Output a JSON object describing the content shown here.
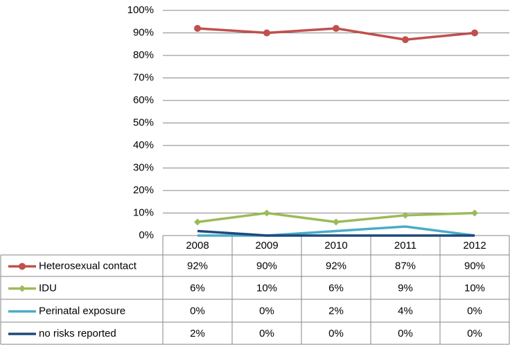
{
  "chart_data": {
    "type": "line",
    "categories": [
      "2008",
      "2009",
      "2010",
      "2011",
      "2012"
    ],
    "series": [
      {
        "name": "Heterosexual contact",
        "color": "#c0504d",
        "marker": "circle",
        "values": [
          92,
          90,
          92,
          87,
          90
        ],
        "value_labels": [
          "92%",
          "90%",
          "92%",
          "87%",
          "90%"
        ]
      },
      {
        "name": "IDU",
        "color": "#9bbb59",
        "marker": "diamond",
        "values": [
          6,
          10,
          6,
          9,
          10
        ],
        "value_labels": [
          "6%",
          "10%",
          "6%",
          "9%",
          "10%"
        ]
      },
      {
        "name": "Perinatal exposure",
        "color": "#4bacc6",
        "values": [
          0,
          0,
          2,
          4,
          0
        ],
        "value_labels": [
          "0%",
          "0%",
          "2%",
          "4%",
          "0%"
        ]
      },
      {
        "name": "no risks reported",
        "color": "#1f497d",
        "values": [
          2,
          0,
          0,
          0,
          0
        ],
        "value_labels": [
          "2%",
          "0%",
          "0%",
          "0%",
          "0%"
        ]
      }
    ],
    "ylim": [
      0,
      100
    ],
    "yticks": [
      {
        "value": 0,
        "label": "0%"
      },
      {
        "value": 10,
        "label": "10%"
      },
      {
        "value": 20,
        "label": "20%"
      },
      {
        "value": 30,
        "label": "30%"
      },
      {
        "value": 40,
        "label": "40%"
      },
      {
        "value": 50,
        "label": "50%"
      },
      {
        "value": 60,
        "label": "60%"
      },
      {
        "value": 70,
        "label": "70%"
      },
      {
        "value": 80,
        "label": "80%"
      },
      {
        "value": 90,
        "label": "90%"
      },
      {
        "value": 100,
        "label": "100%"
      }
    ],
    "grid": true,
    "legend": "table"
  }
}
